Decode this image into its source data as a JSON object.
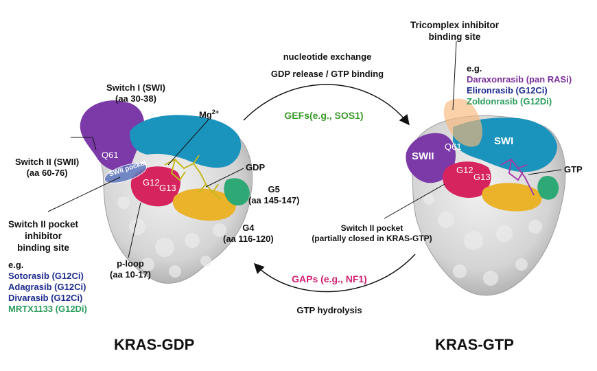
{
  "colors": {
    "switch1": "#1a93bd",
    "switch2": "#7b3aa8",
    "ploop": "#d6245e",
    "g4": "#eab32a",
    "g5": "#2ea874",
    "surface": "#d8d8d8",
    "gef": "#3a9a2a",
    "gap": "#d11f73",
    "inhibitor_blue": "#1d2b8f",
    "inhibitor_green": "#2a9d5c",
    "inhibitor_purple": "#7a2f9a"
  },
  "left": {
    "title": "KRAS-GDP",
    "switch1_label": "Switch I (SWI)",
    "switch1_range": "(aa 30-38)",
    "mg_label": "Mg",
    "mg_sup": "2+",
    "switch2_label": "Switch II (SWII)",
    "switch2_range": "(aa 60-76)",
    "q61": "Q61",
    "swii_pocket": "SWII pocket",
    "g12": "G12",
    "g13": "G13",
    "gdp": "GDP",
    "g5_label": "G5",
    "g5_range": "(aa 145-147)",
    "g4_label": "G4",
    "g4_range": "(aa 116-120)",
    "pocket_line1": "Switch II pocket",
    "pocket_line2": "inhibitor",
    "pocket_line3": "binding site",
    "ploop_label": "p-loop",
    "ploop_range": "(aa 10-17)",
    "eg": "e.g.",
    "inhibitors": [
      {
        "name": "Sotorasib (G12Ci)",
        "color": "blue"
      },
      {
        "name": "Adagrasib (G12Ci)",
        "color": "blue"
      },
      {
        "name": "Divarasib (G12Ci)",
        "color": "blue"
      },
      {
        "name": "MRTX1133 (G12Di)",
        "color": "green"
      }
    ]
  },
  "center": {
    "top_line1": "nucleotide exchange",
    "top_line2": "GDP release / GTP binding",
    "gef": "GEFs(e.g., SOS1)",
    "gap": "GAPs (e.g., NF1)",
    "bottom": "GTP hydrolysis"
  },
  "right": {
    "title": "KRAS-GTP",
    "tri_line1": "Tricomplex inhibitor",
    "tri_line2": "binding site",
    "eg": "e.g.",
    "inhibitors": [
      {
        "name": "Daraxonrasib (pan RASi)",
        "color": "purple"
      },
      {
        "name": "Elironrasib (G12Ci)",
        "color": "blue"
      },
      {
        "name": "Zoldonrasib (G12Di)",
        "color": "green"
      }
    ],
    "q61": "Q61",
    "swi": "SWI",
    "swii": "SWII",
    "g12": "G12",
    "g13": "G13",
    "gtp": "GTP",
    "pocket_line1": "Switch II pocket",
    "pocket_line2": "(partially closed in KRAS-GTP)"
  }
}
